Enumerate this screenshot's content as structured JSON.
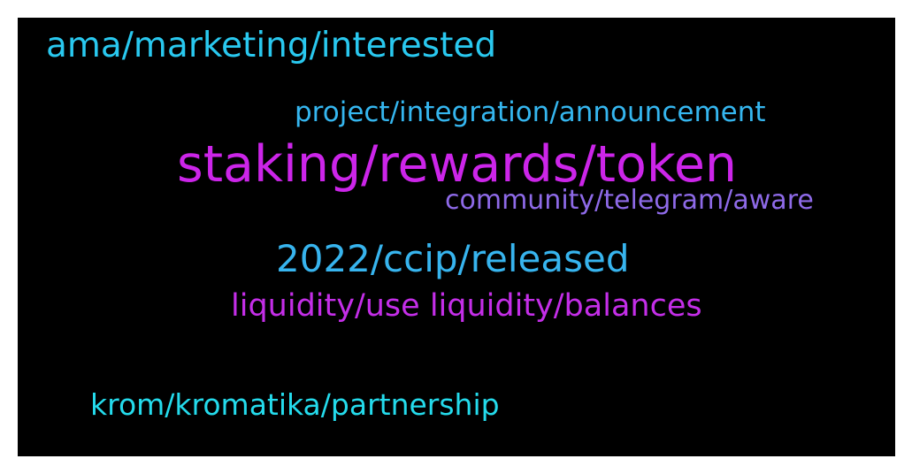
{
  "words": [
    {
      "text": "ama/marketing/interested",
      "color": "#29c8ef"
    },
    {
      "text": "project/integration/announcement",
      "color": "#35b6ef"
    },
    {
      "text": "staking/rewards/token",
      "color": "#cc25e9"
    },
    {
      "text": "community/telegram/aware",
      "color": "#8e6ae8"
    },
    {
      "text": "2022/ccip/released",
      "color": "#37b4ee"
    },
    {
      "text": "liquidity/use liquidity/balances",
      "color": "#c42ee8"
    },
    {
      "text": "krom/kromatika/partnership",
      "color": "#24dbec"
    }
  ]
}
